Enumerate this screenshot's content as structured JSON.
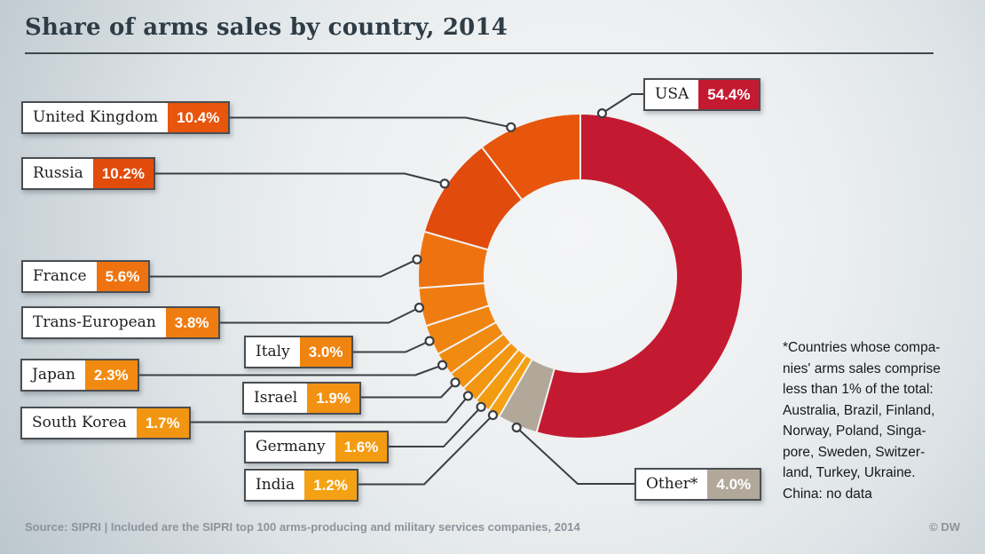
{
  "title": "Share of arms sales by country, 2014",
  "note": {
    "lines": [
      "*Countries whose compa-",
      "nies' arms sales comprise",
      "less than 1% of the total:",
      "Australia, Brazil, Finland,",
      "Norway, Poland, Singa-",
      "pore, Sweden, Switzer-",
      "land, Turkey, Ukraine.",
      "China: no data"
    ]
  },
  "footer": {
    "source": "Source: SIPRI | Included are the SIPRI top 100 arms-producing and military services companies, 2014",
    "credit": "© DW"
  },
  "chart_data": {
    "type": "pie",
    "donut": true,
    "title": "Share of arms sales by country, 2014",
    "unit": "%",
    "start": "12 o'clock",
    "direction": "clockwise",
    "legend_position": "callout-labels",
    "slices": [
      {
        "label": "USA",
        "value": 54.4,
        "display": "54.4%",
        "color": "#c41a31"
      },
      {
        "label": "Other*",
        "value": 4.0,
        "display": "4.0%",
        "color": "#b2a89a"
      },
      {
        "label": "India",
        "value": 1.2,
        "display": "1.2%",
        "color": "#f4a214"
      },
      {
        "label": "Germany",
        "value": 1.6,
        "display": "1.6%",
        "color": "#f39c12"
      },
      {
        "label": "South Korea",
        "value": 1.7,
        "display": "1.7%",
        "color": "#f29611"
      },
      {
        "label": "Israel",
        "value": 1.9,
        "display": "1.9%",
        "color": "#f29112"
      },
      {
        "label": "Japan",
        "value": 2.3,
        "display": "2.3%",
        "color": "#f18a11"
      },
      {
        "label": "Italy",
        "value": 3.0,
        "display": "3.0%",
        "color": "#f08410"
      },
      {
        "label": "Trans-European",
        "value": 3.8,
        "display": "3.8%",
        "color": "#ef7c10"
      },
      {
        "label": "France",
        "value": 5.6,
        "display": "5.6%",
        "color": "#ee7310"
      },
      {
        "label": "Russia",
        "value": 10.2,
        "display": "10.2%",
        "color": "#e14b0c"
      },
      {
        "label": "United Kingdom",
        "value": 10.4,
        "display": "10.4%",
        "color": "#e8550d"
      }
    ]
  }
}
